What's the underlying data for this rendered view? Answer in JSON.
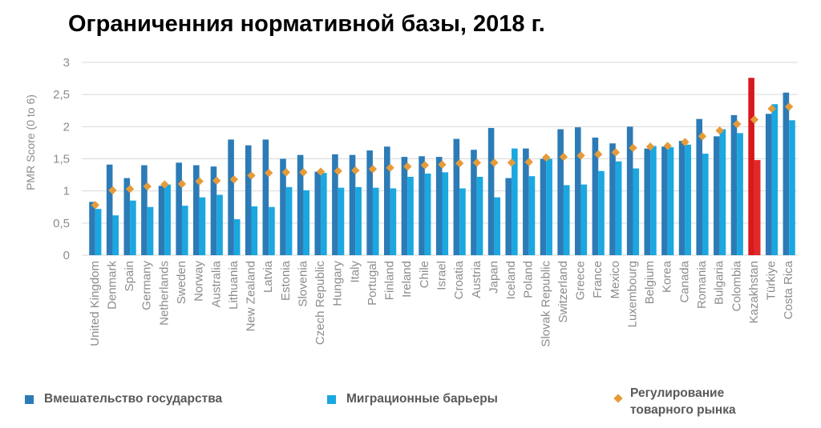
{
  "chart_data": {
    "type": "bar",
    "title": "Ограниченния нормативной базы, 2018 г.",
    "ylabel": "PMR Score (0 to 6)",
    "ylim": [
      0,
      3
    ],
    "yticks": [
      "0",
      "0,5",
      "1",
      "1,5",
      "2",
      "2,5",
      "3"
    ],
    "grid": true,
    "legend_position": "bottom",
    "categories": [
      "United Kingdom",
      "Denmark",
      "Spain",
      "Germany",
      "Netherlands",
      "Sweden",
      "Norway",
      "Australia",
      "Lithuania",
      "New Zealand",
      "Latvia",
      "Estonia",
      "Slovenia",
      "Czech Republic",
      "Hungary",
      "Italy",
      "Portugal",
      "Finland",
      "Ireland",
      "Chile",
      "Israel",
      "Croatia",
      "Austria",
      "Japan",
      "Iceland",
      "Poland",
      "Slovak Republic",
      "Switzerland",
      "Greece",
      "France",
      "Mexico",
      "Luxembourg",
      "Belgium",
      "Korea",
      "Canada",
      "Romania",
      "Bulgaria",
      "Colombia",
      "Kazakhstan",
      "Türkiye",
      "Costa Rica"
    ],
    "highlight_category": "Kazakhstan",
    "series": [
      {
        "name": "Вмешательство государства",
        "kind": "bar",
        "color": "#2c7bb6",
        "highlight_color": "#d7191c",
        "values": [
          0.83,
          1.41,
          1.2,
          1.4,
          1.08,
          1.44,
          1.4,
          1.38,
          1.8,
          1.71,
          1.8,
          1.5,
          1.56,
          1.3,
          1.57,
          1.56,
          1.63,
          1.69,
          1.53,
          1.54,
          1.53,
          1.81,
          1.64,
          1.98,
          1.2,
          1.66,
          1.5,
          1.96,
          1.99,
          1.83,
          1.74,
          2.0,
          1.66,
          1.69,
          1.78,
          2.12,
          1.85,
          2.18,
          2.76,
          2.2,
          2.53
        ]
      },
      {
        "name": "Миграционные барьеры",
        "kind": "bar",
        "color": "#1ba7e0",
        "highlight_color": "#e2292a",
        "values": [
          0.72,
          0.62,
          0.85,
          0.75,
          1.1,
          0.77,
          0.9,
          0.94,
          0.56,
          0.76,
          0.75,
          1.06,
          1.01,
          1.28,
          1.05,
          1.06,
          1.05,
          1.04,
          1.22,
          1.27,
          1.29,
          1.04,
          1.22,
          0.9,
          1.66,
          1.23,
          1.5,
          1.09,
          1.1,
          1.31,
          1.46,
          1.35,
          1.7,
          1.68,
          1.72,
          1.58,
          1.96,
          1.9,
          1.48,
          2.35,
          2.1
        ]
      },
      {
        "name": "Регулирование товарного рынка",
        "kind": "marker",
        "color": "#e69b3a",
        "values": [
          0.78,
          1.01,
          1.03,
          1.07,
          1.1,
          1.11,
          1.15,
          1.16,
          1.18,
          1.24,
          1.28,
          1.29,
          1.29,
          1.3,
          1.31,
          1.32,
          1.34,
          1.36,
          1.38,
          1.4,
          1.41,
          1.43,
          1.44,
          1.44,
          1.44,
          1.45,
          1.52,
          1.53,
          1.55,
          1.57,
          1.6,
          1.67,
          1.69,
          1.7,
          1.76,
          1.85,
          1.94,
          2.04,
          2.11,
          2.28,
          2.31
        ]
      }
    ]
  },
  "legend": {
    "state_label": "Вмешательство государства",
    "migration_label": "Миграционные барьеры",
    "market_label_line1": "Регулирование",
    "market_label_line2": "товарного рынка"
  }
}
